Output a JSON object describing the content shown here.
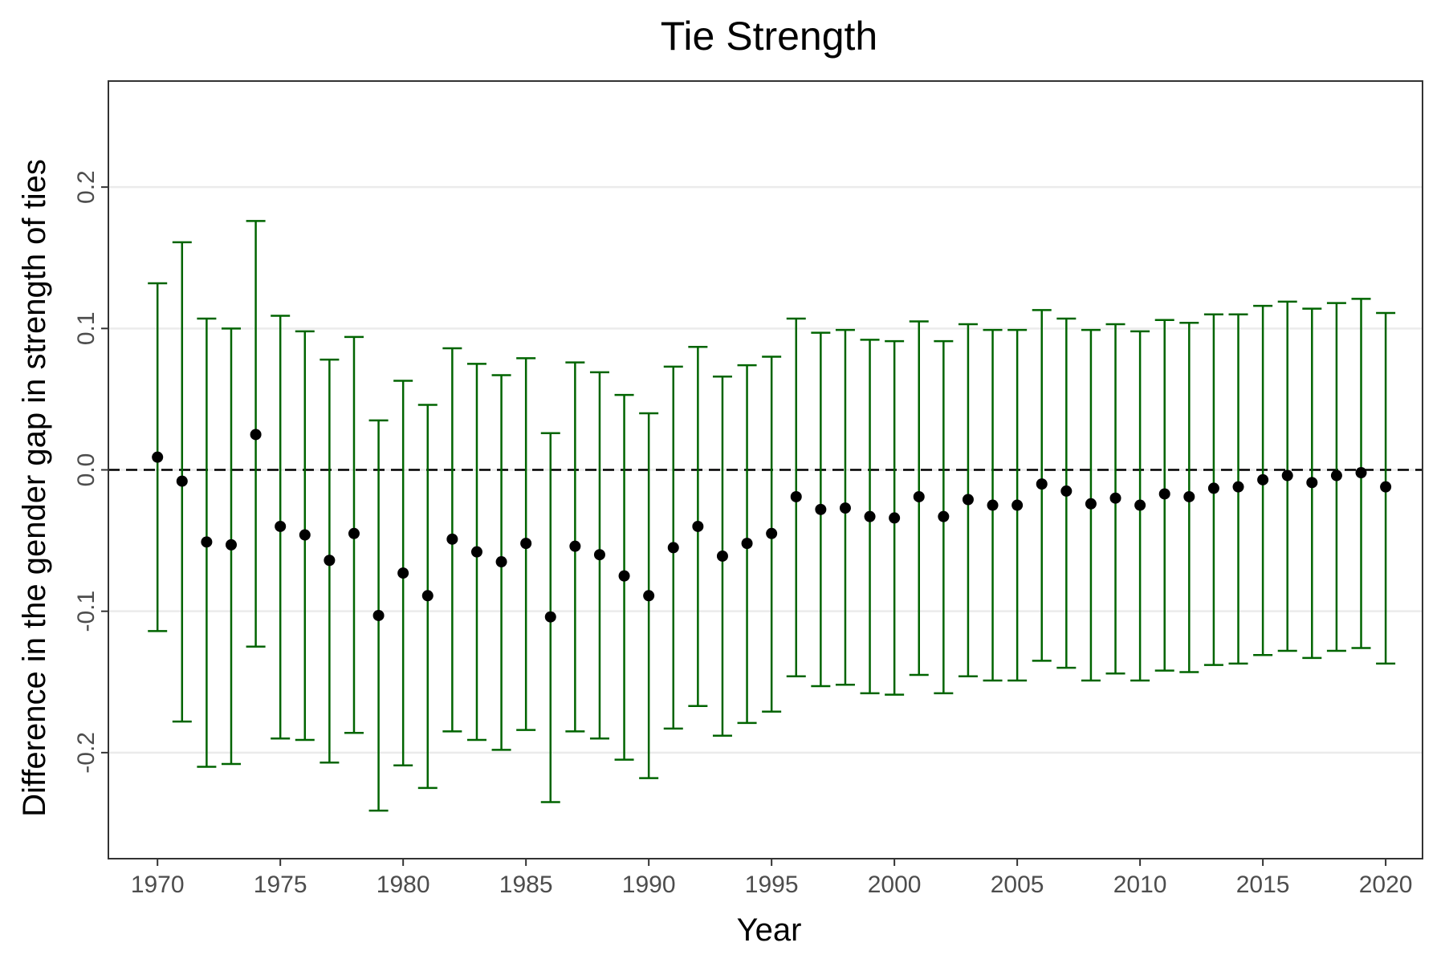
{
  "chart_data": {
    "type": "scatter",
    "title": "Tie Strength",
    "xlabel": "Year",
    "ylabel": "Difference in the gender gap in strength of ties",
    "xlim": [
      1968,
      2021.5
    ],
    "ylim": [
      -0.275,
      0.275
    ],
    "x_ticks": [
      1970,
      1975,
      1980,
      1985,
      1990,
      1995,
      2000,
      2005,
      2010,
      2015,
      2020
    ],
    "x_tick_labels": [
      "1970",
      "1975",
      "1980",
      "1985",
      "1990",
      "1995",
      "2000",
      "2005",
      "2010",
      "2015",
      "2020"
    ],
    "y_ticks": [
      -0.2,
      -0.1,
      0.0,
      0.1,
      0.2
    ],
    "y_tick_labels": [
      "-0.2",
      "-0.1",
      "0.0",
      "0.1",
      "0.2"
    ],
    "grid": "horizontal major",
    "reference_line": {
      "y": 0,
      "style": "dashed"
    },
    "colors": {
      "point": "#000000",
      "errorbar": "#006400",
      "grid": "#ebebeb",
      "panel_border": "#333333"
    },
    "series": [
      {
        "x": [
          1970,
          1971,
          1972,
          1973,
          1974,
          1975,
          1976,
          1977,
          1978,
          1979,
          1980,
          1981,
          1982,
          1983,
          1984,
          1985,
          1986,
          1987,
          1988,
          1989,
          1990,
          1991,
          1992,
          1993,
          1994,
          1995,
          1996,
          1997,
          1998,
          1999,
          2000,
          2001,
          2002,
          2003,
          2004,
          2005,
          2006,
          2007,
          2008,
          2009,
          2010,
          2011,
          2012,
          2013,
          2014,
          2015,
          2016,
          2017,
          2018,
          2019,
          2020
        ],
        "y": [
          0.009,
          -0.008,
          -0.051,
          -0.053,
          0.025,
          -0.04,
          -0.046,
          -0.064,
          -0.045,
          -0.103,
          -0.073,
          -0.089,
          -0.049,
          -0.058,
          -0.065,
          -0.052,
          -0.104,
          -0.054,
          -0.06,
          -0.075,
          -0.089,
          -0.055,
          -0.04,
          -0.061,
          -0.052,
          -0.045,
          -0.019,
          -0.028,
          -0.027,
          -0.033,
          -0.034,
          -0.019,
          -0.033,
          -0.021,
          -0.025,
          -0.025,
          -0.01,
          -0.015,
          -0.024,
          -0.02,
          -0.025,
          -0.017,
          -0.019,
          -0.013,
          -0.012,
          -0.007,
          -0.004,
          -0.009,
          -0.004,
          -0.002,
          -0.012
        ],
        "ymin": [
          -0.114,
          -0.178,
          -0.21,
          -0.208,
          -0.125,
          -0.19,
          -0.191,
          -0.207,
          -0.186,
          -0.241,
          -0.209,
          -0.225,
          -0.185,
          -0.191,
          -0.198,
          -0.184,
          -0.235,
          -0.185,
          -0.19,
          -0.205,
          -0.218,
          -0.183,
          -0.167,
          -0.188,
          -0.179,
          -0.171,
          -0.146,
          -0.153,
          -0.152,
          -0.158,
          -0.159,
          -0.145,
          -0.158,
          -0.146,
          -0.149,
          -0.149,
          -0.135,
          -0.14,
          -0.149,
          -0.144,
          -0.149,
          -0.142,
          -0.143,
          -0.138,
          -0.137,
          -0.131,
          -0.128,
          -0.133,
          -0.128,
          -0.126,
          -0.137
        ],
        "ymax": [
          0.132,
          0.161,
          0.107,
          0.1,
          0.176,
          0.109,
          0.098,
          0.078,
          0.094,
          0.035,
          0.063,
          0.046,
          0.086,
          0.075,
          0.067,
          0.079,
          0.026,
          0.076,
          0.069,
          0.053,
          0.04,
          0.073,
          0.087,
          0.066,
          0.074,
          0.08,
          0.107,
          0.097,
          0.099,
          0.092,
          0.091,
          0.105,
          0.091,
          0.103,
          0.099,
          0.099,
          0.113,
          0.107,
          0.099,
          0.103,
          0.098,
          0.106,
          0.104,
          0.11,
          0.11,
          0.116,
          0.119,
          0.114,
          0.118,
          0.121,
          0.111
        ]
      }
    ]
  }
}
